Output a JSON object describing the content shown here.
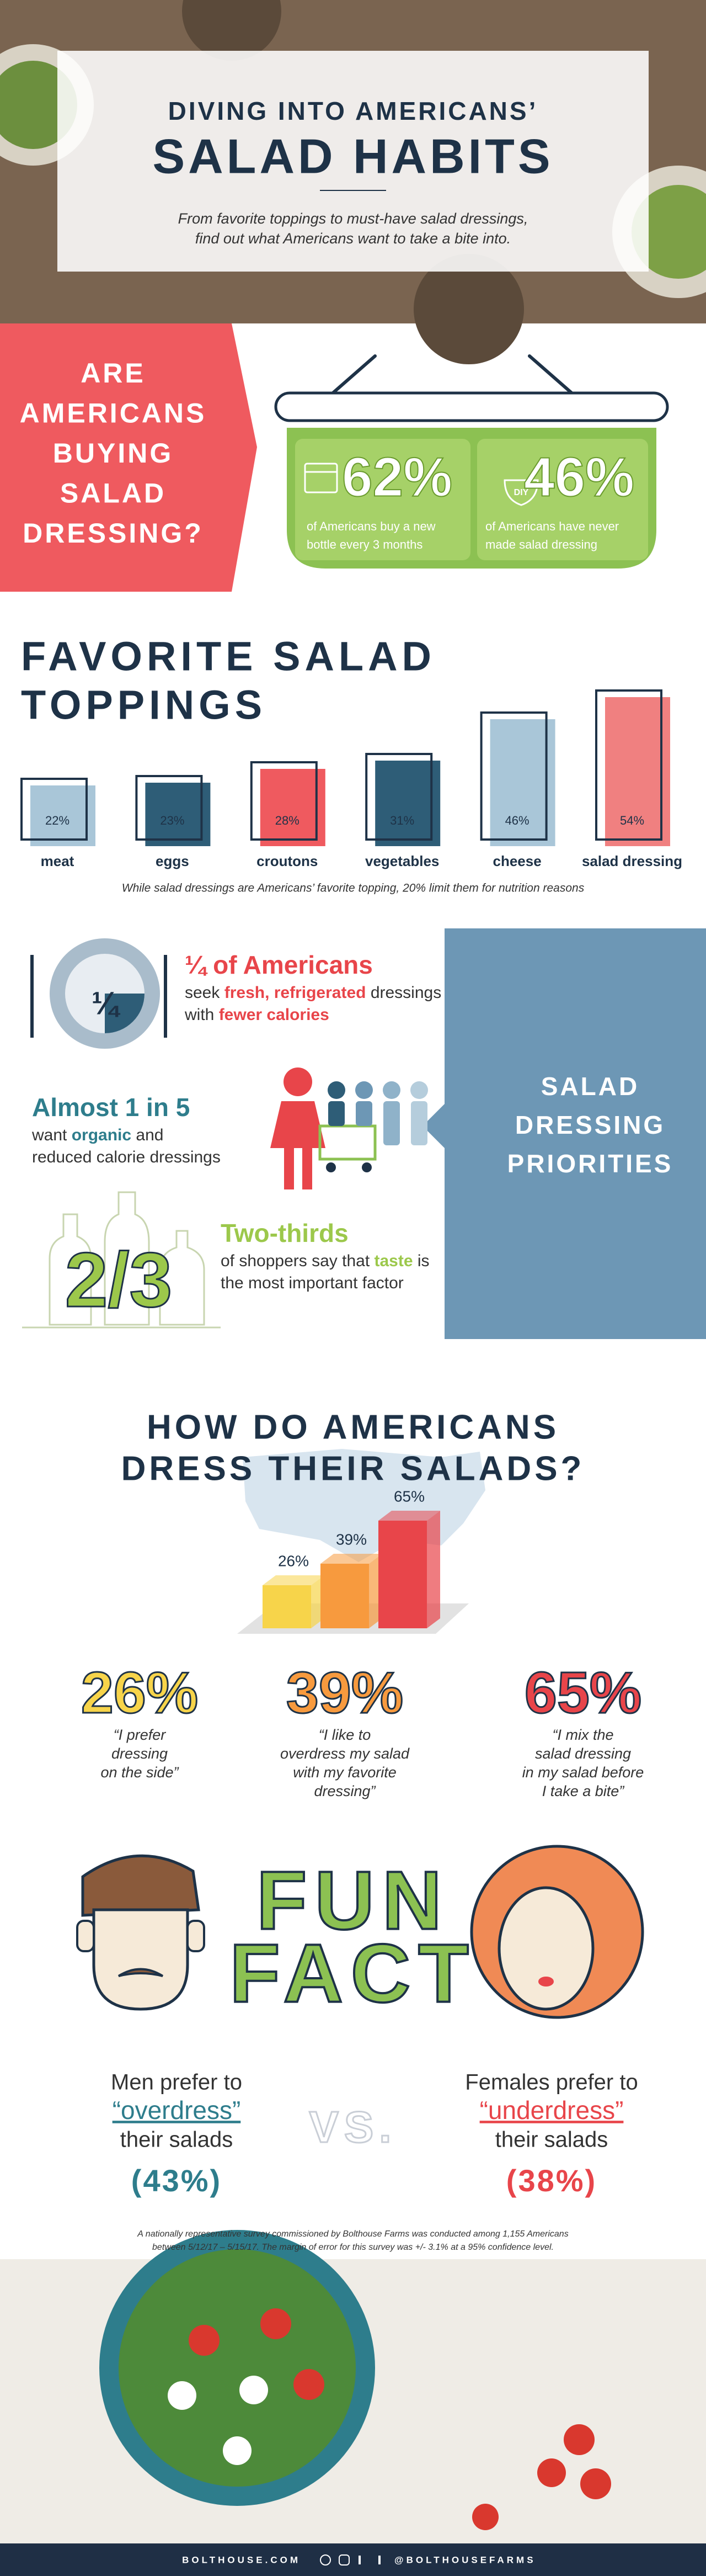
{
  "header": {
    "title_line1": "DIVING INTO AMERICANS’",
    "title_line2": "SALAD HABITS",
    "subtitle_lines": [
      "From favorite toppings to must-have salad dressings,",
      "find out what Americans want to take a bite into."
    ]
  },
  "buying": {
    "question_lines": [
      "ARE",
      "AMERICANS",
      "BUYING",
      "SALAD",
      "DRESSING?"
    ],
    "icon_label": "DIY",
    "stats": [
      {
        "value": "62%",
        "caption_lines": [
          "of Americans buy a new",
          "bottle every 3 months"
        ]
      },
      {
        "value": "46%",
        "caption_lines": [
          "of Americans have never",
          "made salad dressing"
        ]
      }
    ]
  },
  "chart_data": [
    {
      "type": "bar",
      "title_lines": [
        "FAVORITE SALAD",
        "TOPPINGS"
      ],
      "categories": [
        "meat",
        "eggs",
        "croutons",
        "vegetables",
        "cheese",
        "salad dressing"
      ],
      "values": [
        22,
        23,
        28,
        31,
        46,
        54
      ],
      "value_labels": [
        "22%",
        "23%",
        "28%",
        "31%",
        "46%",
        "54%"
      ],
      "colors": [
        "#a9c6d8",
        "#2e5d77",
        "#ef5a5f",
        "#2e5d77",
        "#a9c6d8",
        "#f08080"
      ],
      "note": "While salad dressings are Americans’ favorite topping, 20% limit them for nutrition reasons"
    },
    {
      "type": "bar3d",
      "title_lines": [
        "HOW DO AMERICANS",
        "DRESS THEIR SALADS?"
      ],
      "values": [
        26,
        39,
        65
      ],
      "value_labels": [
        "26%",
        "39%",
        "65%"
      ],
      "colors": [
        "#f7d44a",
        "#f79a3e",
        "#e8454a"
      ],
      "captions": [
        [
          "“I prefer",
          "dressing",
          "on the side”"
        ],
        [
          "“I like to",
          "overdress my salad",
          "with my favorite",
          "dressing”"
        ],
        [
          "“I mix the",
          "salad dressing",
          "in my salad before",
          "I take a bite”"
        ]
      ]
    }
  ],
  "priorities": {
    "panel_lines": [
      "SALAD",
      "DRESSING",
      "PRIORITIES"
    ],
    "items": [
      {
        "icon": "¼",
        "heading": "¼ of Americans",
        "lines": [
          [
            "seek ",
            "fresh, refrigerated",
            " dressings"
          ],
          [
            "with ",
            "fewer calories"
          ]
        ]
      },
      {
        "heading": "Almost 1 in 5",
        "lines": [
          [
            "want ",
            "organic",
            " and"
          ],
          [
            "reduced calorie dressings"
          ]
        ]
      },
      {
        "icon": "2/3",
        "heading": "Two-thirds",
        "lines": [
          [
            "of shoppers say that ",
            "taste",
            " is"
          ],
          [
            "the most important factor"
          ]
        ]
      }
    ]
  },
  "fun_fact": {
    "title_lines": [
      "FUN",
      "FACT"
    ],
    "men": {
      "lines": [
        "Men prefer to",
        "“overdress”",
        "their salads"
      ],
      "percent": "(43%)"
    },
    "vs": "VS.",
    "women": {
      "lines": [
        "Females prefer to",
        "“underdress”",
        "their salads"
      ],
      "percent": "(38%)"
    }
  },
  "footnote_lines": [
    "A nationally representative survey commissioned by Bolthouse Farms was conducted among 1,155 Americans",
    "between 5/12/17 – 5/15/17. The margin of error for this survey was +/- 3.1% at a 95% confidence level."
  ],
  "footer": {
    "left": "BOLTHOUSE.COM",
    "right": "@BOLTHOUSEFARMS"
  }
}
